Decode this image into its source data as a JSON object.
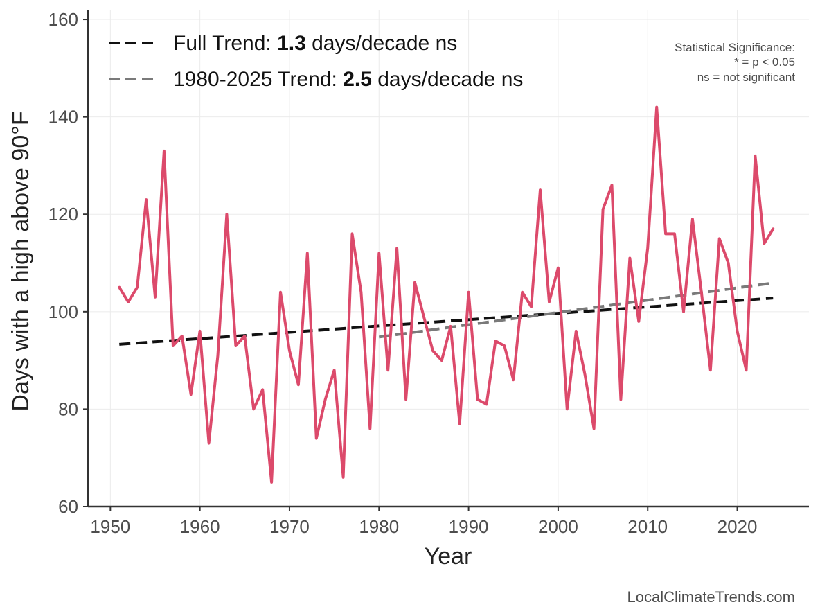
{
  "chart_data": {
    "type": "line",
    "xlabel": "Year",
    "ylabel": "Days with a high above 90°F",
    "xlim": [
      1947.5,
      2028
    ],
    "ylim": [
      60,
      162
    ],
    "x_ticks": [
      1950,
      1960,
      1970,
      1980,
      1990,
      2000,
      2010,
      2020
    ],
    "y_ticks": [
      60,
      80,
      100,
      120,
      140,
      160
    ],
    "grid": true,
    "series": [
      {
        "name": "Days with a high above 90°F",
        "color": "#dc4a6b",
        "x": [
          1951,
          1952,
          1953,
          1954,
          1955,
          1956,
          1957,
          1958,
          1959,
          1960,
          1961,
          1962,
          1963,
          1964,
          1965,
          1966,
          1967,
          1968,
          1969,
          1970,
          1971,
          1972,
          1973,
          1974,
          1975,
          1976,
          1977,
          1978,
          1979,
          1980,
          1981,
          1982,
          1983,
          1984,
          1985,
          1986,
          1987,
          1988,
          1989,
          1990,
          1991,
          1992,
          1993,
          1994,
          1995,
          1996,
          1997,
          1998,
          1999,
          2000,
          2001,
          2002,
          2003,
          2004,
          2005,
          2006,
          2007,
          2008,
          2009,
          2010,
          2011,
          2012,
          2013,
          2014,
          2015,
          2016,
          2017,
          2018,
          2019,
          2020,
          2021,
          2022,
          2023,
          2024
        ],
        "values": [
          105,
          102,
          105,
          123,
          103,
          133,
          93,
          95,
          83,
          96,
          73,
          91,
          120,
          93,
          95,
          80,
          84,
          65,
          104,
          92,
          85,
          112,
          74,
          82,
          88,
          66,
          116,
          104,
          76,
          112,
          88,
          113,
          82,
          106,
          99,
          92,
          90,
          97,
          77,
          104,
          82,
          81,
          94,
          93,
          86,
          104,
          101,
          125,
          102,
          109,
          80,
          96,
          87,
          76,
          121,
          126,
          82,
          111,
          98,
          113,
          142,
          116,
          116,
          100,
          119,
          104,
          88,
          115,
          110,
          96,
          88,
          132,
          114,
          117
        ]
      }
    ],
    "trends": [
      {
        "name": "Full Trend",
        "color": "#111111",
        "x": [
          1951,
          2024
        ],
        "y": [
          93.3,
          102.8
        ],
        "label_prefix": "Full Trend: ",
        "rate": "1.3",
        "label_suffix": " days/decade ns"
      },
      {
        "name": "1980-2025 Trend",
        "color": "#7a7a7a",
        "x": [
          1980,
          2024
        ],
        "y": [
          94.8,
          105.9
        ],
        "label_prefix": "1980-2025 Trend: ",
        "rate": "2.5",
        "label_suffix": " days/decade ns"
      }
    ],
    "significance_note": {
      "title": "Statistical Significance:",
      "line1": "* = p < 0.05",
      "line2": "ns = not significant"
    },
    "legend_position": "top-left",
    "credit": "LocalClimateTrends.com"
  }
}
